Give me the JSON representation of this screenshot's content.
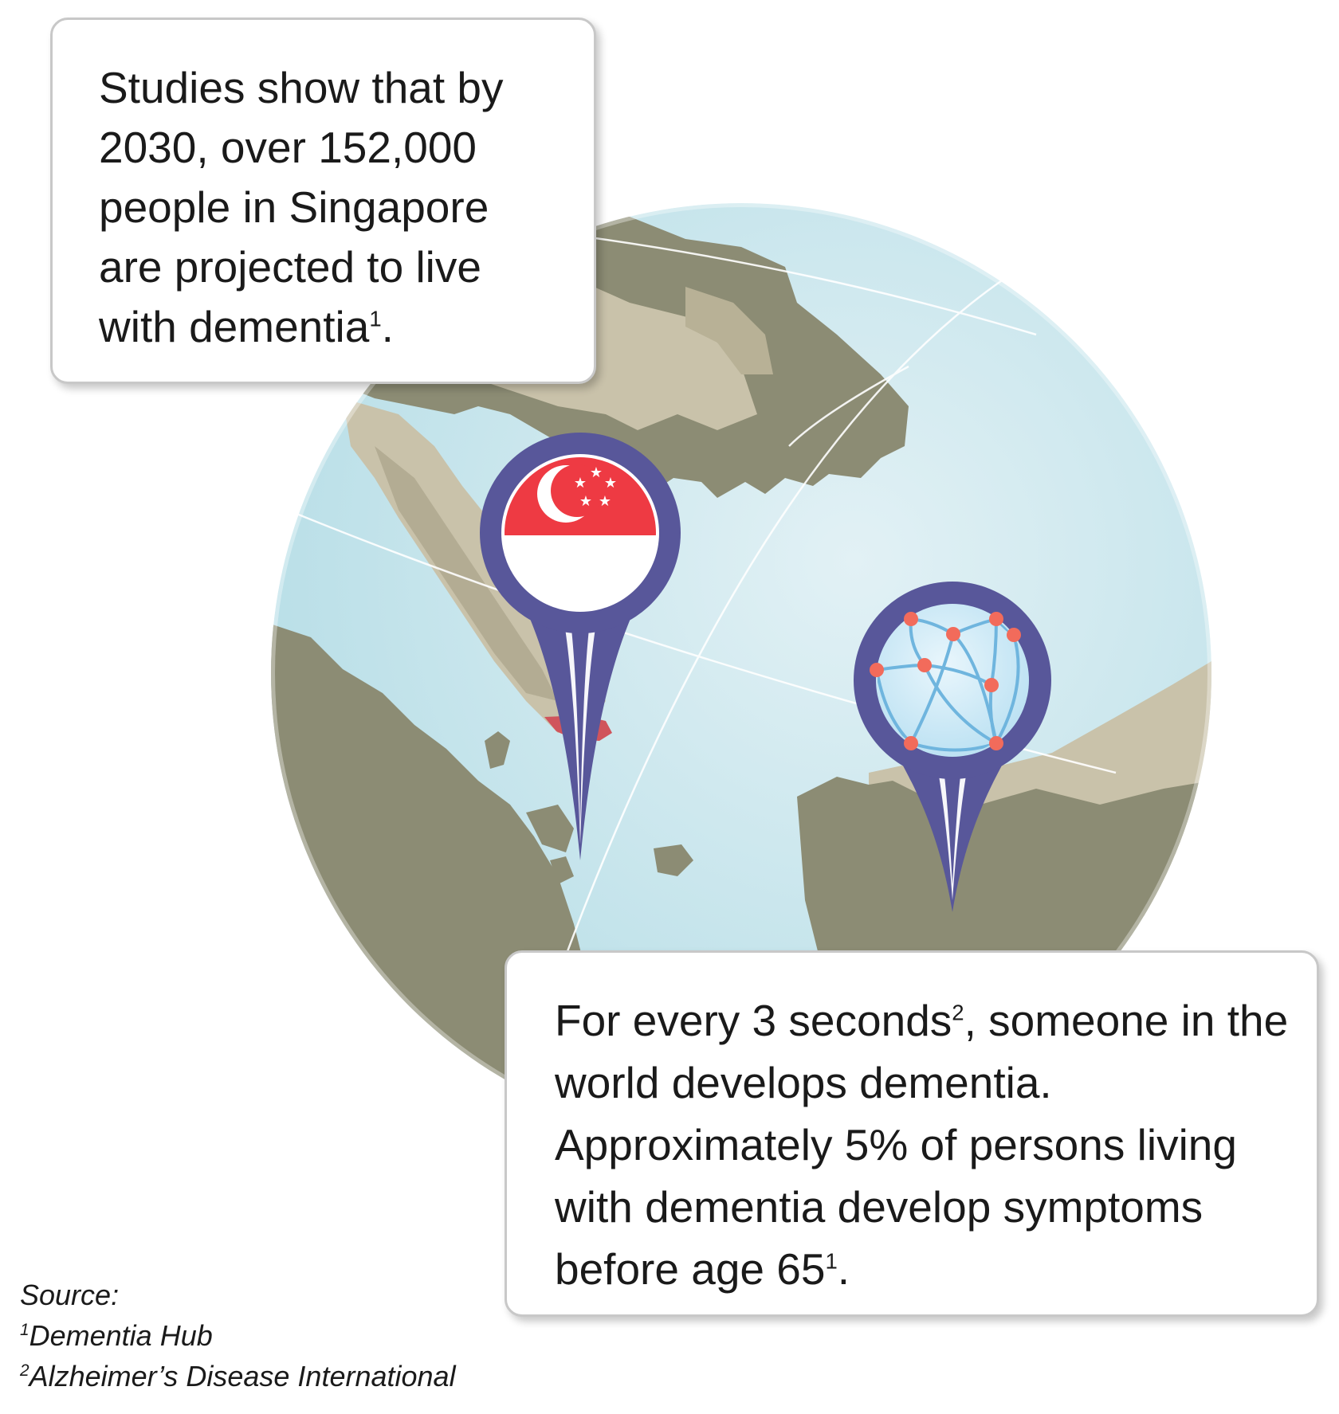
{
  "callout_top": {
    "text": "Studies show that by 2030, over 152,000 people in Singapore are projected to live with dementia",
    "ref": "1",
    "end": "."
  },
  "callout_bottom": {
    "part1": "For every 3 seconds",
    "ref1": "2",
    "part2": ", someone in the world develops dementia. Approximately 5% of persons living with dementia develop symptoms before age 65",
    "ref2": "1",
    "end": "."
  },
  "sources": {
    "heading": "Source:",
    "items": [
      {
        "num": "1",
        "name": "Dementia Hub"
      },
      {
        "num": "2",
        "name": "Alzheimer’s Disease International"
      }
    ]
  },
  "icons": [
    "globe-map",
    "singapore-flag-pin-icon",
    "network-globe-pin-icon"
  ],
  "colors": {
    "ocean": "#bfe3ea",
    "land_dark": "#8c8c74",
    "land_light": "#c9c2aa",
    "pin": "#58579a",
    "flag_red": "#ee3a43",
    "singapore_highlight": "#d0545c",
    "network_node": "#f26b5b",
    "network_line": "#6fb5de"
  }
}
